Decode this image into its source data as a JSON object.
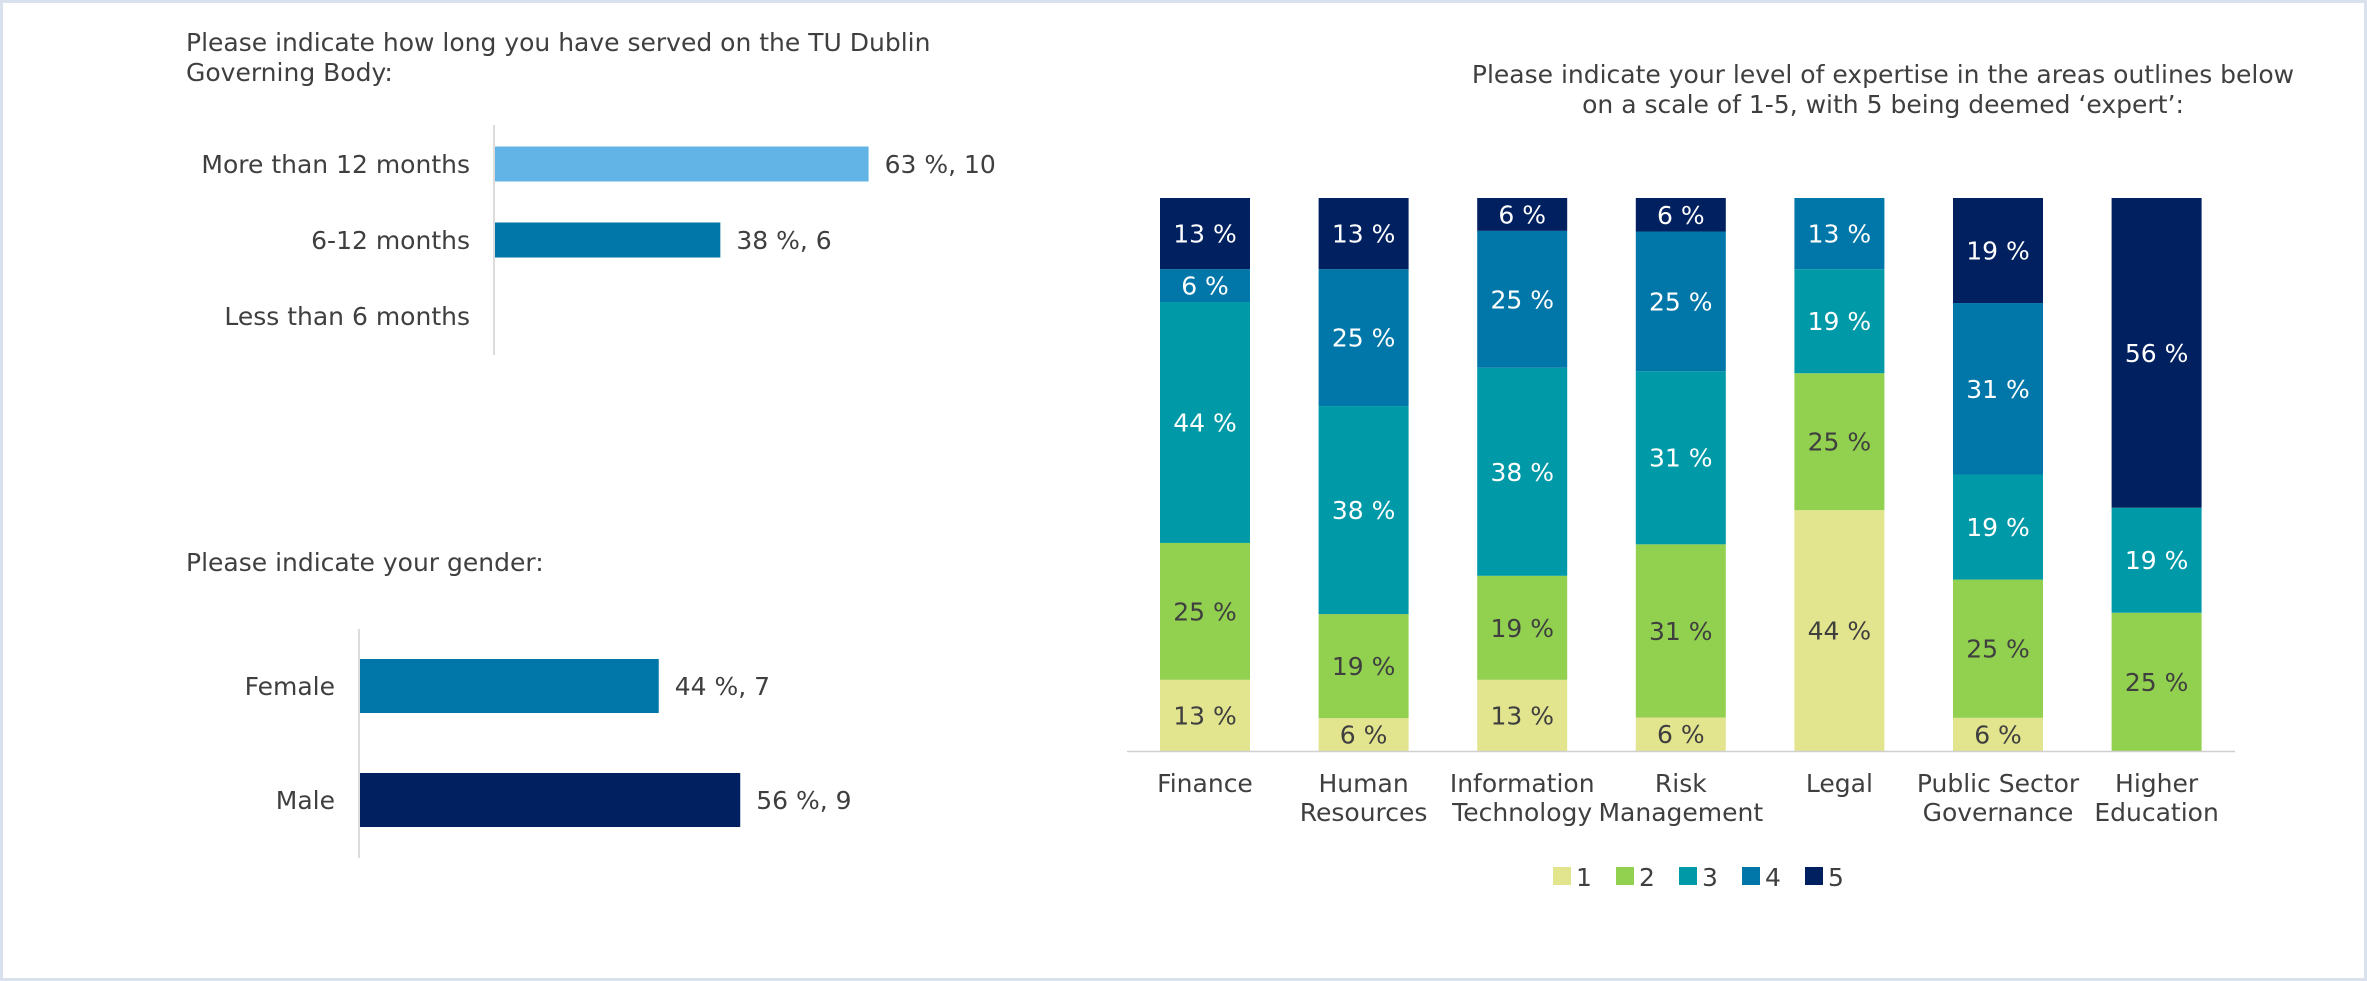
{
  "colors": {
    "text": "#3f3f3f",
    "axis": "#d0d0d0",
    "tenure_bar_1": "#63b4e6",
    "tenure_bar_2": "#0077a8",
    "female": "#0077a8",
    "male": "#002060",
    "level_1": "#e2e48e",
    "level_2": "#92d050",
    "level_3": "#0099a8",
    "level_4": "#0077a8",
    "level_5": "#002060"
  },
  "chart_data": [
    {
      "type": "bar",
      "orientation": "horizontal",
      "title": "Please indicate how long you have served on the TU Dublin Governing Body:",
      "categories": [
        "More than 12 months",
        "6-12 months",
        "Less than 6 months"
      ],
      "values": [
        63,
        38,
        0
      ],
      "counts": [
        10,
        6,
        0
      ],
      "data_labels": [
        "63 %, 10",
        "38 %, 6",
        ""
      ],
      "grid": false
    },
    {
      "type": "bar",
      "orientation": "horizontal",
      "title": "Please indicate your gender:",
      "categories": [
        "Female",
        "Male"
      ],
      "values": [
        44,
        56
      ],
      "counts": [
        7,
        9
      ],
      "data_labels": [
        "44 %, 7",
        "56 %, 9"
      ],
      "grid": false
    },
    {
      "type": "bar",
      "stacked": true,
      "title": "Please indicate your level of expertise in the areas outlines below on a scale of 1-5, with 5 being deemed ‘expert’:",
      "title_lines": [
        "Please indicate your level of expertise in the areas outlines below",
        "on a scale of 1-5, with 5 being deemed ‘expert’:"
      ],
      "categories": [
        [
          "Finance"
        ],
        [
          "Human",
          "Resources"
        ],
        [
          "Information",
          "Technology"
        ],
        [
          "Risk",
          "Management"
        ],
        [
          "Legal"
        ],
        [
          "Public Sector",
          "Governance"
        ],
        [
          "Higher",
          "Education"
        ]
      ],
      "series": [
        {
          "name": "1",
          "values": [
            13,
            6,
            13,
            6,
            44,
            6,
            0
          ]
        },
        {
          "name": "2",
          "values": [
            25,
            19,
            19,
            31,
            25,
            25,
            25
          ]
        },
        {
          "name": "3",
          "values": [
            44,
            38,
            38,
            31,
            19,
            19,
            19
          ]
        },
        {
          "name": "4",
          "values": [
            6,
            25,
            25,
            25,
            13,
            31,
            0
          ]
        },
        {
          "name": "5",
          "values": [
            13,
            13,
            6,
            6,
            0,
            19,
            56
          ]
        }
      ],
      "value_suffix": " %",
      "legend": "bottom",
      "grid": false
    }
  ]
}
